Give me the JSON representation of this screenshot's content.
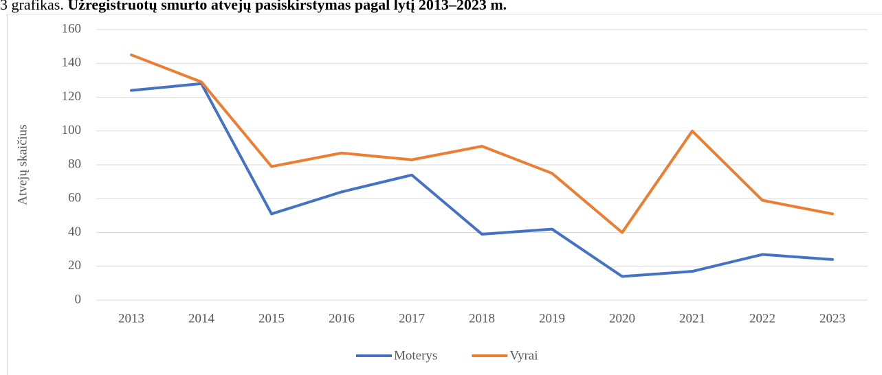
{
  "chart_data": {
    "type": "line",
    "title_prefix": "3 grafikas.",
    "title": "Užregistruotų smurto atvejų pasiskirstymas pagal lytį 2013–2023 m.",
    "ylabel": "Atvejų skaičius",
    "categories": [
      "2013",
      "2014",
      "2015",
      "2016",
      "2017",
      "2018",
      "2019",
      "2020",
      "2021",
      "2022",
      "2023"
    ],
    "series": [
      {
        "name": "Moterys",
        "color": "#4472c4",
        "values": [
          124,
          128,
          51,
          64,
          74,
          39,
          42,
          14,
          17,
          27,
          24
        ]
      },
      {
        "name": "Vyrai",
        "color": "#ed7d31",
        "values": [
          145,
          129,
          79,
          87,
          83,
          91,
          75,
          40,
          100,
          59,
          51
        ]
      }
    ],
    "ylim": [
      0,
      160
    ],
    "yticks": [
      0,
      20,
      40,
      60,
      80,
      100,
      120,
      140,
      160
    ],
    "grid": true,
    "legend": "bottom"
  }
}
